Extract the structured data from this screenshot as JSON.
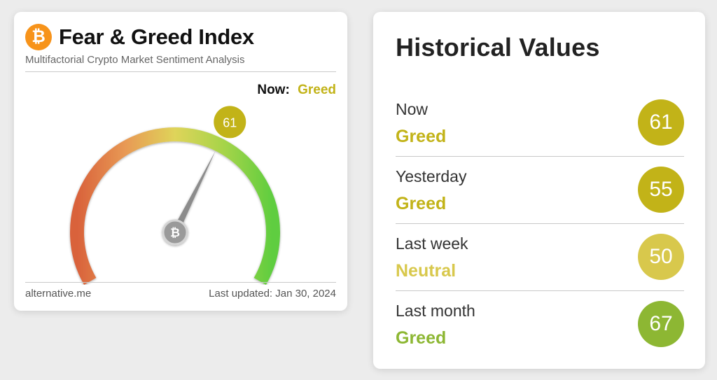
{
  "widget": {
    "title": "Fear & Greed Index",
    "subtitle": "Multifactorial Crypto Market Sentiment Analysis",
    "now_label": "Now:",
    "now_classification": "Greed",
    "value": 61,
    "value_label": "61",
    "source": "alternative.me",
    "last_updated": "Last updated: Jan 30, 2024",
    "logo_icon": "bitcoin-logo-icon"
  },
  "history": {
    "title": "Historical Values",
    "rows": [
      {
        "period": "Now",
        "classification": "Greed",
        "value": "61",
        "color": "#c2b318"
      },
      {
        "period": "Yesterday",
        "classification": "Greed",
        "value": "55",
        "color": "#c2b318"
      },
      {
        "period": "Last week",
        "classification": "Neutral",
        "value": "50",
        "color": "#d8c84c"
      },
      {
        "period": "Last month",
        "classification": "Greed",
        "value": "67",
        "color": "#8db733"
      }
    ]
  },
  "colors": {
    "fear": "#d9623b",
    "neutral": "#d8c84c",
    "greed": "#c2b318",
    "extreme_greed": "#5ecd3f",
    "brand": "#f7931a"
  }
}
